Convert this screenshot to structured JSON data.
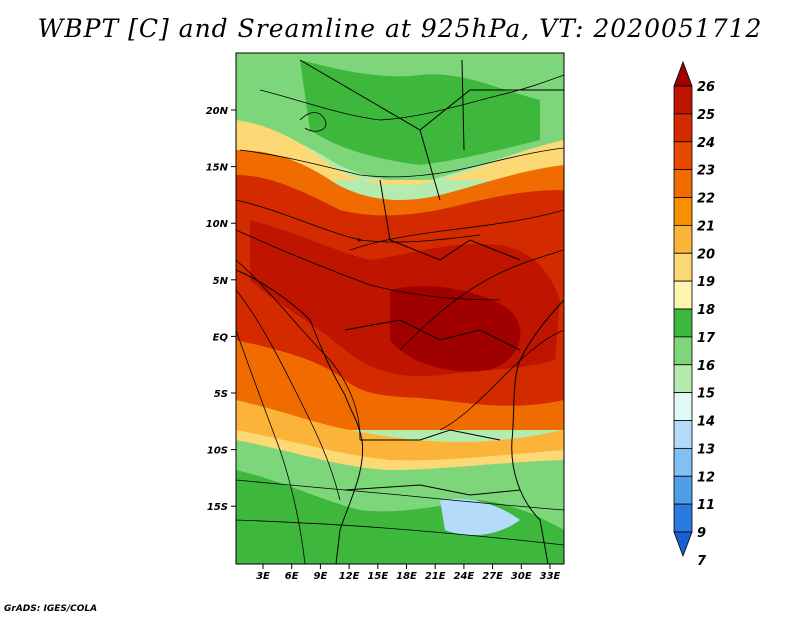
{
  "title": "WBPT [C] and Sreamline at 925hPa, VT: 2020051712",
  "credit": "GrADS: IGES/COLA",
  "axes": {
    "lat_labels": [
      "20N",
      "15N",
      "10N",
      "5N",
      "EQ",
      "5S",
      "10S",
      "15S"
    ],
    "lon_labels": [
      "3E",
      "6E",
      "9E",
      "12E",
      "15E",
      "18E",
      "21E",
      "24E",
      "27E",
      "30E",
      "33E"
    ]
  },
  "colorbar": {
    "levels": [
      "26",
      "25",
      "24",
      "23",
      "22",
      "21",
      "20",
      "19",
      "18",
      "17",
      "16",
      "15",
      "14",
      "13",
      "12",
      "11",
      "9",
      "7"
    ],
    "colors": [
      "#a00000",
      "#be1400",
      "#d42a00",
      "#e64a00",
      "#f06c00",
      "#f79000",
      "#fbb33a",
      "#fdd975",
      "#fdf5b0",
      "#3db83d",
      "#7ed67a",
      "#b4ecb0",
      "#e2f8f4",
      "#b4dcfa",
      "#82c0f2",
      "#4e9ee8",
      "#2a7be0",
      "#1a5fd2"
    ]
  },
  "map": {
    "variable": "WBPT",
    "units": "C",
    "level": "925hPa",
    "valid_time": "2020051712"
  }
}
